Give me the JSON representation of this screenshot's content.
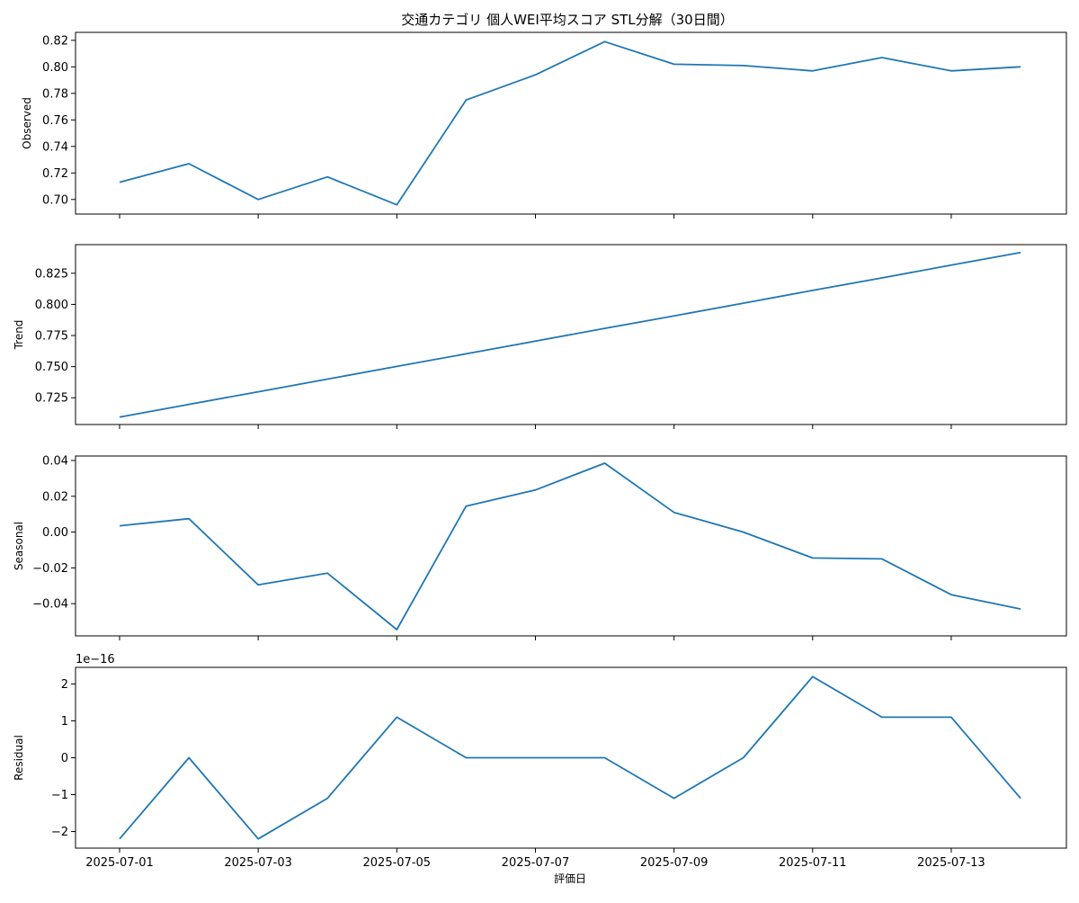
{
  "chart_data": {
    "type": "line",
    "title": "交通カテゴリ 個人WEI平均スコア STL分解（30日間）",
    "xlabel": "評価日",
    "line_color": "#1f77b4",
    "x": [
      "2025-07-01",
      "2025-07-02",
      "2025-07-03",
      "2025-07-04",
      "2025-07-05",
      "2025-07-06",
      "2025-07-07",
      "2025-07-08",
      "2025-07-09",
      "2025-07-10",
      "2025-07-11",
      "2025-07-12",
      "2025-07-13",
      "2025-07-14"
    ],
    "xticks": [
      "2025-07-01",
      "2025-07-03",
      "2025-07-05",
      "2025-07-07",
      "2025-07-09",
      "2025-07-11",
      "2025-07-13"
    ],
    "panels": [
      {
        "ylabel": "Observed",
        "ylim": [
          0.689,
          0.826
        ],
        "yticks": [
          "0.70",
          "0.72",
          "0.74",
          "0.76",
          "0.78",
          "0.80",
          "0.82"
        ],
        "values": [
          0.713,
          0.727,
          0.7,
          0.717,
          0.696,
          0.775,
          0.794,
          0.819,
          0.802,
          0.801,
          0.797,
          0.807,
          0.797,
          0.8
        ]
      },
      {
        "ylabel": "Trend",
        "ylim": [
          0.7035,
          0.848
        ],
        "yticks": [
          "0.725",
          "0.750",
          "0.775",
          "0.800",
          "0.825"
        ],
        "values": [
          0.7095,
          0.7197,
          0.7298,
          0.74,
          0.7502,
          0.7603,
          0.7705,
          0.7807,
          0.7908,
          0.801,
          0.8112,
          0.8213,
          0.8315,
          0.8417
        ]
      },
      {
        "ylabel": "Seasonal",
        "ylim": [
          -0.058,
          0.0425
        ],
        "yticks": [
          "−0.04",
          "−0.02",
          "0.00",
          "0.02",
          "0.04"
        ],
        "values": [
          0.0035,
          0.0075,
          -0.0295,
          -0.023,
          -0.0545,
          0.0145,
          0.0235,
          0.0385,
          0.011,
          0.0,
          -0.0145,
          -0.015,
          -0.035,
          -0.043
        ]
      },
      {
        "ylabel": "Residual",
        "offset": "1e−16",
        "ylim": [
          -2.45,
          2.45
        ],
        "yticks": [
          "−2",
          "−1",
          "0",
          "1",
          "2"
        ],
        "values": [
          -2.2,
          0.0,
          -2.2,
          -1.1,
          1.1,
          0.0,
          0.0,
          0.0,
          -1.1,
          0.0,
          2.2,
          1.1,
          1.1,
          -1.1
        ]
      }
    ]
  }
}
